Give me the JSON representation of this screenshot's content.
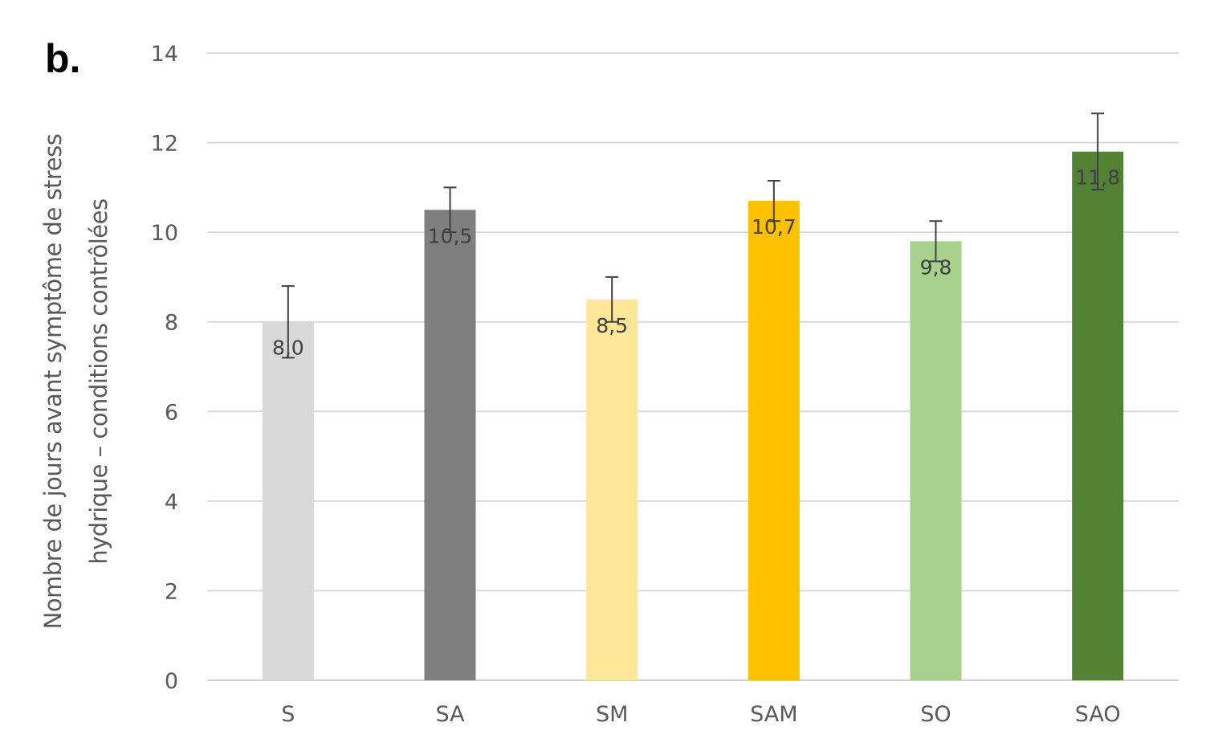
{
  "panel_label": "b.",
  "chart_data": {
    "type": "bar",
    "ylabel_lines": [
      "Nombre de jours avant symptôme de stress",
      "hydrique – conditions contrôlées"
    ],
    "categories": [
      "S",
      "SA",
      "SM",
      "SAM",
      "SO",
      "SAO"
    ],
    "values": [
      8.0,
      10.5,
      8.5,
      10.7,
      9.8,
      11.8
    ],
    "value_labels": [
      "8,0",
      "10,5",
      "8,5",
      "10,7",
      "9,8",
      "11,8"
    ],
    "error_bars": [
      0.8,
      0.5,
      0.5,
      0.45,
      0.45,
      0.85
    ],
    "bar_colors": [
      "#d9d9d9",
      "#7f7f7f",
      "#ffe699",
      "#ffc000",
      "#a9d18e",
      "#548235"
    ],
    "ylim": [
      0,
      14
    ],
    "yticks": [
      0,
      2,
      4,
      6,
      8,
      10,
      12,
      14
    ],
    "grid": true
  }
}
